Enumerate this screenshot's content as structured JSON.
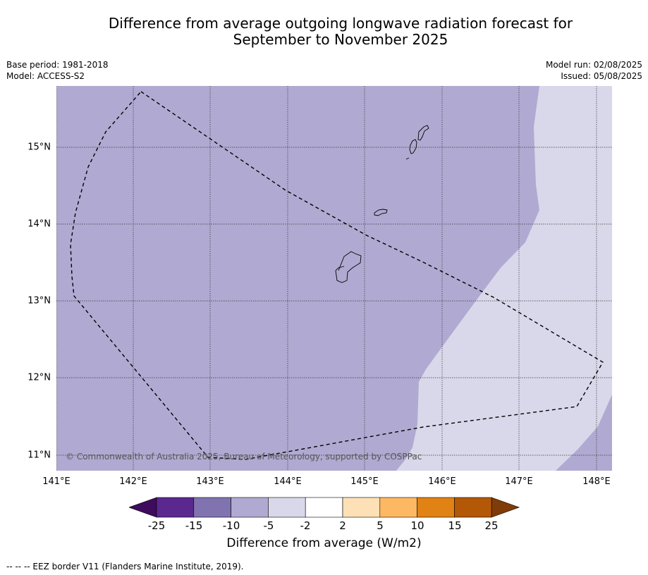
{
  "title_line1": "Difference from average outgoing longwave radiation forecast for",
  "title_line2": "September to November 2025",
  "meta_left": {
    "base_period": "Base period: 1981-2018",
    "model": "Model: ACCESS-S2"
  },
  "meta_right": {
    "model_run": "Model run: 02/08/2025",
    "issued": "Issued: 05/08/2025"
  },
  "map": {
    "lat_labels": [
      "15°N",
      "14°N",
      "13°N",
      "12°N",
      "11°N"
    ],
    "lon_labels": [
      "141°E",
      "142°E",
      "143°E",
      "144°E",
      "145°E",
      "146°E",
      "147°E",
      "148°E"
    ],
    "fill_colors": {
      "-10_to_-5": "#b0aad2",
      "-5_to_-2": "#d8d8ea"
    },
    "copyright": "© Commonwealth of Australia 2025, Bureau of Meteorology, supported by COSPPac"
  },
  "colorbar": {
    "colors": [
      "#3f0b5c",
      "#5b2890",
      "#8173b0",
      "#b0aad2",
      "#d8d8ea",
      "#ffffff",
      "#fde0b6",
      "#fdb863",
      "#e08214",
      "#b35806",
      "#7f3b08"
    ],
    "ticks": [
      "-25",
      "-15",
      "-10",
      "-5",
      "-2",
      "2",
      "5",
      "10",
      "15",
      "25"
    ],
    "label": "Difference from average (W/m2)"
  },
  "footer": "--  --  -- EEZ border V11 (Flanders Marine Institute, 2019)."
}
